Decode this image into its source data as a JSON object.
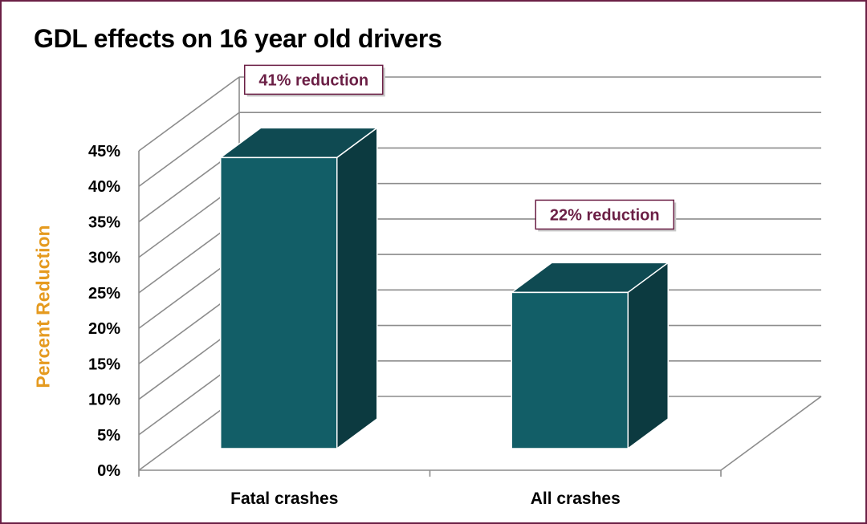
{
  "chart_data": {
    "type": "bar",
    "title": "GDL effects on 16 year old drivers",
    "xlabel": "",
    "ylabel": "Percent Reduction",
    "categories": [
      "Fatal crashes",
      "All crashes"
    ],
    "values": [
      41,
      22
    ],
    "value_unit": "%",
    "ylim": [
      0,
      45
    ],
    "ytick_step": 5,
    "yticks": [
      "0%",
      "5%",
      "10%",
      "15%",
      "20%",
      "25%",
      "30%",
      "35%",
      "40%",
      "45%"
    ],
    "annotations": [
      "41% reduction",
      "22% reduction"
    ],
    "grid": true,
    "legend": "none"
  },
  "colors": {
    "frame": "#6b1f45",
    "bar_front": "#125e67",
    "bar_top": "#0f4a52",
    "bar_side": "#0c3a40",
    "axis_label": "#e59a1f",
    "annotation_text": "#6b1f45",
    "annotation_border": "#6b1f45",
    "grid": "#8c8c8c"
  }
}
